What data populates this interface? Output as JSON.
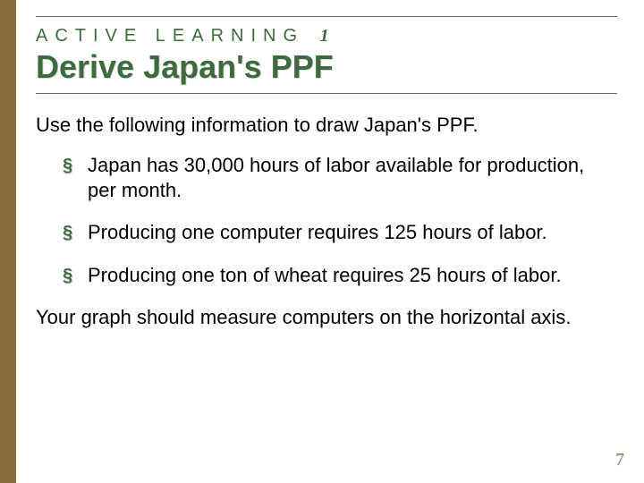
{
  "colors": {
    "accent_green": "#3d6b3d",
    "left_bar_top": "#9b7a42",
    "left_bar_bottom": "#7a5a2e",
    "rule": "#6b6b5a",
    "pagenum": "#8a7a5a",
    "background": "#ffffff",
    "body_text": "#000000"
  },
  "typography": {
    "eyebrow_fontsize": 20,
    "eyebrow_letterspacing": 8,
    "title_fontsize": 36,
    "body_fontsize": 22,
    "pagenum_fontsize": 20
  },
  "eyebrow": {
    "label": "ACTIVE LEARNING",
    "number": "1"
  },
  "title": "Derive Japan's PPF",
  "intro": "Use the following information to draw Japan's PPF.",
  "bullets": [
    "Japan has 30,000 hours of labor available for production, per month.",
    "Producing one computer requires 125 hours of labor.",
    "Producing one ton of wheat requires 25 hours of labor."
  ],
  "outro": "Your graph should measure computers on the horizontal axis.",
  "page_number": "7",
  "bullet_glyph": "§"
}
